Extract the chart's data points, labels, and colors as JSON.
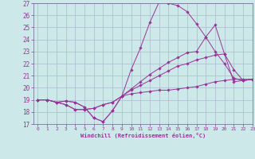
{
  "xlabel": "Windchill (Refroidissement éolien,°C)",
  "bg_color": "#cce8e8",
  "grid_color": "#aabbcc",
  "line_color": "#993399",
  "line1": [
    19.0,
    19.0,
    18.8,
    18.9,
    18.8,
    18.4,
    17.5,
    17.2,
    18.1,
    19.3,
    19.5,
    19.6,
    19.7,
    19.8,
    19.8,
    19.9,
    20.0,
    20.1,
    20.3,
    20.5,
    20.6,
    20.7,
    20.7,
    20.7
  ],
  "line2": [
    19.0,
    19.0,
    18.8,
    18.9,
    18.8,
    18.4,
    17.5,
    17.2,
    18.1,
    19.3,
    21.5,
    23.3,
    25.4,
    27.1,
    27.0,
    26.8,
    26.3,
    25.3,
    24.2,
    25.2,
    22.8,
    20.5,
    20.6,
    20.7
  ],
  "line3": [
    19.0,
    19.0,
    18.8,
    18.6,
    18.2,
    18.2,
    18.3,
    18.6,
    18.8,
    19.3,
    19.9,
    20.5,
    21.1,
    21.6,
    22.1,
    22.5,
    22.9,
    23.0,
    24.2,
    23.0,
    22.0,
    20.8,
    20.6,
    20.7
  ],
  "line4": [
    19.0,
    19.0,
    18.8,
    18.6,
    18.2,
    18.2,
    18.3,
    18.6,
    18.8,
    19.3,
    19.8,
    20.2,
    20.6,
    21.0,
    21.4,
    21.8,
    22.0,
    22.3,
    22.5,
    22.7,
    22.8,
    21.5,
    20.6,
    20.7
  ],
  "ylim": [
    17,
    27
  ],
  "xlim": [
    -0.5,
    23
  ],
  "yticks": [
    17,
    18,
    19,
    20,
    21,
    22,
    23,
    24,
    25,
    26,
    27
  ],
  "xticks": [
    0,
    1,
    2,
    3,
    4,
    5,
    6,
    7,
    8,
    9,
    10,
    11,
    12,
    13,
    14,
    15,
    16,
    17,
    18,
    19,
    20,
    21,
    22,
    23
  ]
}
